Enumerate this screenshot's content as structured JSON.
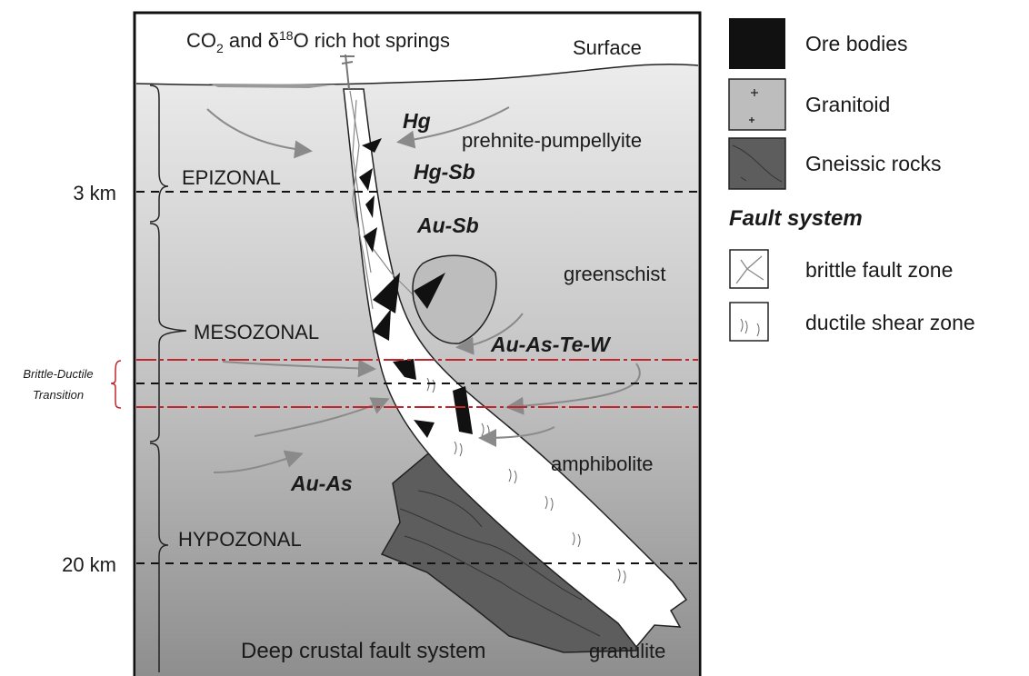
{
  "header": {
    "title": [
      "CO",
      "2",
      " and δ",
      "18",
      "O rich hot springs"
    ],
    "surface": "Surface"
  },
  "depths": [
    "3 km",
    "20 km"
  ],
  "zones": [
    "EPIZONAL",
    "MESOZONAL",
    "HYPOZONAL"
  ],
  "transition": [
    "Brittle-Ductile",
    "Transition"
  ],
  "deposits": [
    "Hg",
    "Hg-Sb",
    "Au-Sb",
    "Au-As-Te-W",
    "Au-As"
  ],
  "facies": [
    "prehnite-pumpellyite",
    "greenschist",
    "amphibolite",
    "granulite"
  ],
  "fault_label": "Deep crustal fault system",
  "legend": {
    "items": [
      "Ore bodies",
      "Granitoid",
      "Gneissic rocks"
    ],
    "heading": "Fault system",
    "fault_items": [
      "brittle fault zone",
      "ductile shear zone"
    ]
  }
}
